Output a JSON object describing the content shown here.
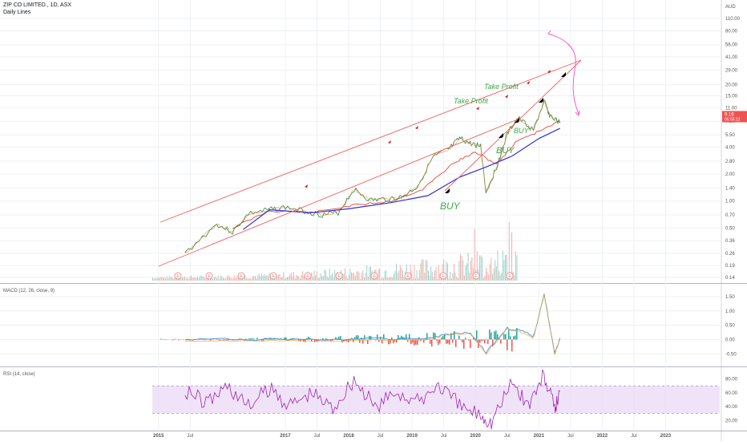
{
  "header": {
    "symbol_title": "ZIP CO LIMITED., 1D, ASX",
    "overlay_label": "Daily Lines"
  },
  "colors": {
    "price_line": "#2e8b3a",
    "ma_fast": "#e04a3a",
    "ma_slow": "#3030d0",
    "trendline": "#f06060",
    "projection": "#ff44cc",
    "macd_line": "#4a90d9",
    "signal_line": "#f0a030",
    "hist_pos": "#26a69a",
    "hist_neg": "#ef5350",
    "rsi_line": "#9c27b0",
    "rsi_band": "#ead7f5",
    "annotation_text": "#3aa84a",
    "price_badge": "#ef5350",
    "grid": "#eef0f3"
  },
  "chart_data": [
    {
      "type": "line",
      "panel": "price",
      "scale": "log",
      "currency": "AUD",
      "y_ticks": [
        "110.00",
        "80.00",
        "56.00",
        "41.00",
        "29.00",
        "20.00",
        "15.00",
        "11.00",
        "7.80",
        "5.50",
        "4.00",
        "2.80",
        "2.00",
        "1.40",
        "1.00",
        "0.70",
        "0.50",
        "0.36",
        "0.26",
        "0.19",
        "0.14"
      ],
      "ylim": [
        0.14,
        150
      ],
      "x_ticks": [
        "2015",
        "Jul",
        "2017",
        "Jul",
        "2018",
        "Jul",
        "2019",
        "Jul",
        "2020",
        "Jul",
        "2021",
        "Jul",
        "2022",
        "Jul",
        "2023"
      ],
      "last_price": "9.16",
      "last_price_countdown": "06:55:12",
      "series": [
        {
          "x": [
            "2015-06",
            "2015-12",
            "2016-03",
            "2016-06",
            "2016-10",
            "2017-01",
            "2017-05",
            "2017-08",
            "2017-11",
            "2018-02",
            "2018-05",
            "2018-08",
            "2018-11",
            "2019-02",
            "2019-05",
            "2019-08",
            "2019-10",
            "2019-12",
            "2020-02",
            "2020-03",
            "2020-05",
            "2020-07",
            "2020-09",
            "2020-12",
            "2021-02",
            "2021-03",
            "2021-05"
          ],
          "values": [
            0.26,
            0.55,
            0.45,
            0.72,
            0.8,
            0.85,
            0.76,
            0.7,
            0.74,
            1.35,
            1.02,
            1.05,
            1.1,
            1.45,
            3.1,
            3.8,
            5.0,
            4.4,
            4.1,
            1.25,
            2.4,
            5.6,
            8.5,
            6.2,
            13.0,
            9.2,
            7.4
          ]
        },
        {
          "x": [
            "2016-03",
            "2016-10",
            "2017-06",
            "2018-01",
            "2018-09",
            "2019-03",
            "2019-09",
            "2020-01",
            "2020-05",
            "2020-09",
            "2021-01",
            "2021-05"
          ],
          "values": [
            0.5,
            0.78,
            0.74,
            0.88,
            1.0,
            1.35,
            2.7,
            3.5,
            2.6,
            4.8,
            6.0,
            7.8
          ]
        },
        {
          "x": [
            "2016-05",
            "2016-10",
            "2017-06",
            "2018-01",
            "2018-09",
            "2019-04",
            "2019-10",
            "2020-03",
            "2020-08",
            "2021-01",
            "2021-05"
          ],
          "values": [
            0.48,
            0.8,
            0.74,
            0.82,
            0.96,
            1.15,
            1.85,
            2.4,
            3.2,
            5.0,
            6.5
          ]
        }
      ],
      "annotations": [
        {
          "text": "Take Profit"
        },
        {
          "text": "Take Profit"
        },
        {
          "text": "BUY"
        },
        {
          "text": "BUY"
        },
        {
          "text": "BUY"
        }
      ],
      "event_markers": [
        "E",
        "E",
        "E",
        "E",
        "E",
        "E",
        "E",
        "E",
        "E",
        "E",
        "E"
      ]
    },
    {
      "type": "line",
      "panel": "macd",
      "title": "MACD (12, 26, close, 9)",
      "y_ticks": [
        "1.50",
        "1.00",
        "0.50",
        "0.00",
        "-0.50"
      ],
      "ylim": [
        -0.8,
        1.75
      ],
      "series": [
        {
          "x": [
            "2015-06",
            "2016-06",
            "2017-06",
            "2018-06",
            "2019-04",
            "2019-08",
            "2019-12",
            "2020-03",
            "2020-07",
            "2020-10",
            "2020-12",
            "2021-02",
            "2021-04",
            "2021-05"
          ],
          "values": [
            0.0,
            0.01,
            0.0,
            0.02,
            0.05,
            0.2,
            0.25,
            -0.45,
            0.4,
            0.28,
            0.1,
            1.6,
            -0.5,
            0.05
          ]
        }
      ]
    },
    {
      "type": "line",
      "panel": "rsi",
      "title": "RSI (14, close)",
      "y_ticks": [
        "80.00",
        "60.00",
        "40.00",
        "20.00"
      ],
      "ylim": [
        10,
        90
      ],
      "band": [
        30,
        70
      ],
      "series": [
        {
          "x": [
            "2015-06",
            "2015-10",
            "2016-02",
            "2016-06",
            "2016-10",
            "2017-02",
            "2017-06",
            "2017-10",
            "2018-02",
            "2018-06",
            "2018-10",
            "2019-02",
            "2019-06",
            "2019-10",
            "2020-02",
            "2020-04",
            "2020-08",
            "2020-11",
            "2021-02",
            "2021-04",
            "2021-05"
          ],
          "values": [
            65,
            45,
            70,
            40,
            66,
            42,
            60,
            38,
            80,
            38,
            62,
            46,
            72,
            40,
            28,
            18,
            76,
            42,
            86,
            35,
            62
          ]
        }
      ]
    }
  ]
}
